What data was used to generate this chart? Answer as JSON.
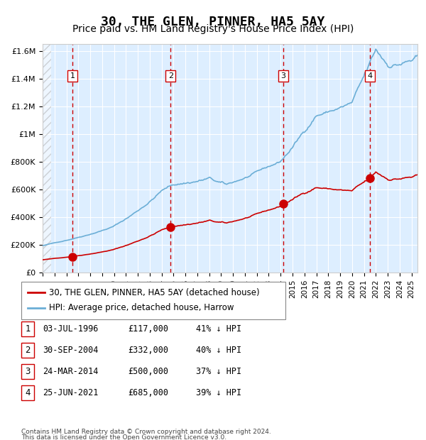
{
  "title": "30, THE GLEN, PINNER, HA5 5AY",
  "subtitle": "Price paid vs. HM Land Registry's House Price Index (HPI)",
  "title_fontsize": 13,
  "subtitle_fontsize": 10,
  "xlim": [
    1994.0,
    2025.5
  ],
  "ylim": [
    0,
    1650000
  ],
  "yticks": [
    0,
    200000,
    400000,
    600000,
    800000,
    1000000,
    1200000,
    1400000,
    1600000
  ],
  "ytick_labels": [
    "£0",
    "£200K",
    "£400K",
    "£600K",
    "£800K",
    "£1M",
    "£1.2M",
    "£1.4M",
    "£1.6M"
  ],
  "xticks": [
    1994,
    1995,
    1996,
    1997,
    1998,
    1999,
    2000,
    2001,
    2002,
    2003,
    2004,
    2005,
    2006,
    2007,
    2008,
    2009,
    2010,
    2011,
    2012,
    2013,
    2014,
    2015,
    2016,
    2017,
    2018,
    2019,
    2020,
    2021,
    2022,
    2023,
    2024,
    2025
  ],
  "hpi_color": "#6baed6",
  "price_color": "#cc0000",
  "dashed_color": "#cc0000",
  "bg_color": "#ddeeff",
  "grid_color": "#ffffff",
  "purchases": [
    {
      "year": 1996.5,
      "price": 117000,
      "label": "1",
      "date": "03-JUL-1996",
      "pct": "41%"
    },
    {
      "year": 2004.75,
      "price": 332000,
      "label": "2",
      "date": "30-SEP-2004",
      "pct": "40%"
    },
    {
      "year": 2014.23,
      "price": 500000,
      "label": "3",
      "date": "24-MAR-2014",
      "pct": "37%"
    },
    {
      "year": 2021.48,
      "price": 685000,
      "label": "4",
      "date": "25-JUN-2021",
      "pct": "39%"
    }
  ],
  "legend_line1": "30, THE GLEN, PINNER, HA5 5AY (detached house)",
  "legend_line2": "HPI: Average price, detached house, Harrow",
  "footer1": "Contains HM Land Registry data © Crown copyright and database right 2024.",
  "footer2": "This data is licensed under the Open Government Licence v3.0.",
  "table": [
    {
      "num": "1",
      "date": "03-JUL-1996",
      "price": "£117,000",
      "pct": "41% ↓ HPI"
    },
    {
      "num": "2",
      "date": "30-SEP-2004",
      "price": "£332,000",
      "pct": "40% ↓ HPI"
    },
    {
      "num": "3",
      "date": "24-MAR-2014",
      "price": "£500,000",
      "pct": "37% ↓ HPI"
    },
    {
      "num": "4",
      "date": "25-JUN-2021",
      "price": "£685,000",
      "pct": "39% ↓ HPI"
    }
  ]
}
